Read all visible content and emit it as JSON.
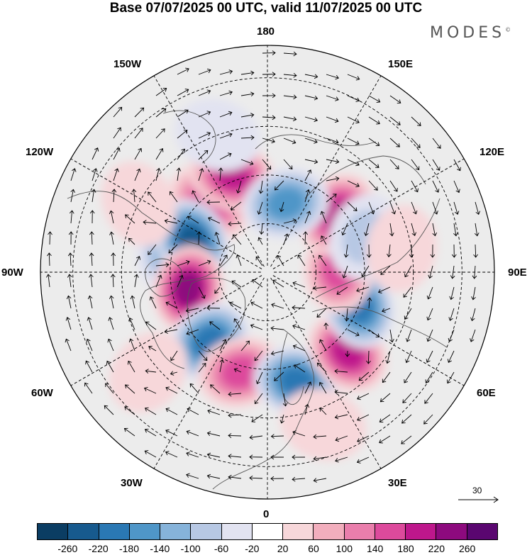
{
  "title": "Base 07/07/2025 00 UTC, valid 11/07/2025 00 UTC",
  "brand": "MODES",
  "brand_mark": "©",
  "longitude_labels": {
    "lon_180": "180",
    "lon_150e": "150E",
    "lon_120e": "120E",
    "lon_90e": "90E",
    "lon_60e": "60E",
    "lon_30e": "30E",
    "lon_0": "0",
    "lon_30w": "30W",
    "lon_60w": "60W",
    "lon_90w": "90W",
    "lon_120w": "120W",
    "lon_150w": "150W"
  },
  "reference_vector": {
    "value": "30"
  },
  "colorbar": {
    "colors": [
      "#0b3d63",
      "#175a8e",
      "#2a78b4",
      "#4f96c8",
      "#86b3da",
      "#b7c8e4",
      "#e2e3f1",
      "#ffffff",
      "#f7d7da",
      "#f2aebd",
      "#ea7eac",
      "#dd4a9c",
      "#be178c",
      "#8d0a7e",
      "#5a0670"
    ],
    "tick_labels": [
      "-260",
      "-220",
      "-180",
      "-140",
      "-100",
      "-60",
      "-20",
      "20",
      "60",
      "100",
      "140",
      "180",
      "220",
      "260"
    ]
  },
  "anomaly_centers": [
    {
      "lat": 62,
      "lon": -140,
      "value": 140
    },
    {
      "lat": 60,
      "lon": -100,
      "value": -100
    },
    {
      "lat": 58,
      "lon": -160,
      "value": 200
    },
    {
      "lat": 65,
      "lon": -112,
      "value": -220
    },
    {
      "lat": 65,
      "lon": -78,
      "value": 220
    },
    {
      "lat": 62,
      "lon": -40,
      "value": -200
    },
    {
      "lat": 58,
      "lon": -15,
      "value": 160
    },
    {
      "lat": 55,
      "lon": 15,
      "value": -200
    },
    {
      "lat": 55,
      "lon": 45,
      "value": 180
    },
    {
      "lat": 60,
      "lon": 70,
      "value": -180
    },
    {
      "lat": 68,
      "lon": 92,
      "value": 140
    },
    {
      "lat": 62,
      "lon": 130,
      "value": 180
    },
    {
      "lat": 68,
      "lon": 165,
      "value": -150
    },
    {
      "lat": 58,
      "lon": 110,
      "value": -60
    },
    {
      "lat": 48,
      "lon": 100,
      "value": 40
    },
    {
      "lat": 45,
      "lon": -160,
      "value": -40
    },
    {
      "lat": 45,
      "lon": -118,
      "value": 40
    },
    {
      "lat": 42,
      "lon": -50,
      "value": 40
    },
    {
      "lat": 40,
      "lon": 20,
      "value": 40
    }
  ]
}
